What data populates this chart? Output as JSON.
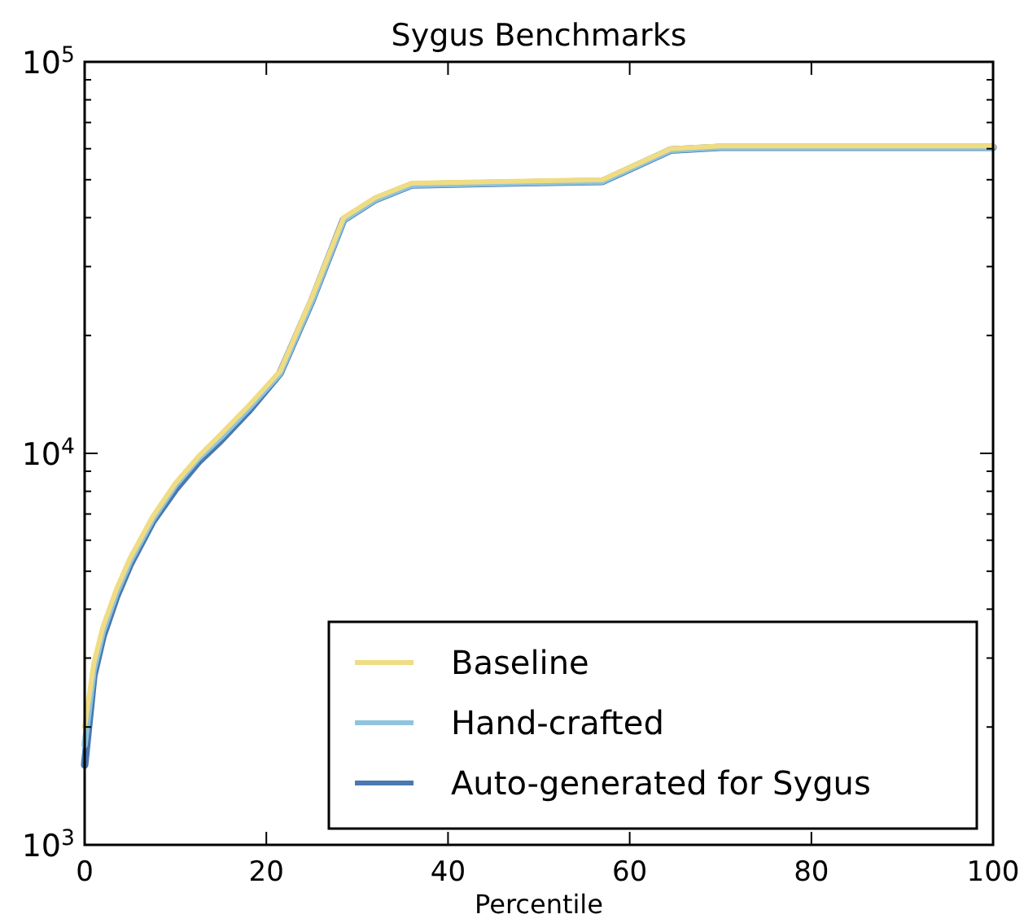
{
  "chart_data": {
    "type": "line",
    "title": "Sygus Benchmarks",
    "xlabel": "Percentile",
    "x": [
      0,
      1,
      2,
      3.5,
      5,
      7.5,
      10,
      12.5,
      15,
      18,
      21.5,
      25,
      28.5,
      32,
      36,
      46,
      57,
      64.5,
      70,
      80,
      100
    ],
    "series": [
      {
        "name": "Baseline",
        "color": "#f0dc82",
        "values": [
          2000,
          2900,
          3600,
          4500,
          5400,
          6900,
          8400,
          9800,
          11200,
          13200,
          16200,
          25000,
          40000,
          45000,
          49000,
          49500,
          50000,
          60000,
          61000,
          61000,
          61000
        ]
      },
      {
        "name": "Hand-crafted",
        "color": "#8ec4de",
        "values": [
          1800,
          2800,
          3500,
          4400,
          5300,
          6800,
          8300,
          9700,
          11000,
          13000,
          16000,
          24500,
          39500,
          44500,
          48500,
          49000,
          49500,
          59500,
          60500,
          60500,
          60500
        ]
      },
      {
        "name": "Auto-generated for Sygus",
        "color": "#4a78b0",
        "values": [
          1600,
          2700,
          3400,
          4300,
          5200,
          6700,
          8100,
          9500,
          10800,
          12800,
          16000,
          24500,
          39500,
          44500,
          48500,
          49000,
          49500,
          59500,
          60500,
          60500,
          60500
        ]
      }
    ],
    "xlim": [
      0,
      100
    ],
    "xticks": [
      0,
      20,
      40,
      60,
      80,
      100
    ],
    "ylim": [
      1000,
      100000
    ],
    "log": true,
    "yticks": [
      {
        "value": 1000,
        "label": "10$^{3}$"
      },
      {
        "value": 2000,
        "label": null
      },
      {
        "value": 3000,
        "label": null
      },
      {
        "value": 4000,
        "label": null
      },
      {
        "value": 5000,
        "label": null
      },
      {
        "value": 6000,
        "label": null
      },
      {
        "value": 7000,
        "label": null
      },
      {
        "value": 8000,
        "label": null
      },
      {
        "value": 9000,
        "label": null
      },
      {
        "value": 10000,
        "label": "10$^{4}$"
      },
      {
        "value": 20000,
        "label": null
      },
      {
        "value": 30000,
        "label": null
      },
      {
        "value": 40000,
        "label": null
      },
      {
        "value": 50000,
        "label": null
      },
      {
        "value": 60000,
        "label": null
      },
      {
        "value": 70000,
        "label": null
      },
      {
        "value": 80000,
        "label": null
      },
      {
        "value": 90000,
        "label": null
      },
      {
        "value": 100000,
        "label": "10$^{5}$"
      }
    ],
    "legend": "bottom right",
    "grid": false,
    "marker": "none",
    "line_style": "solid"
  }
}
